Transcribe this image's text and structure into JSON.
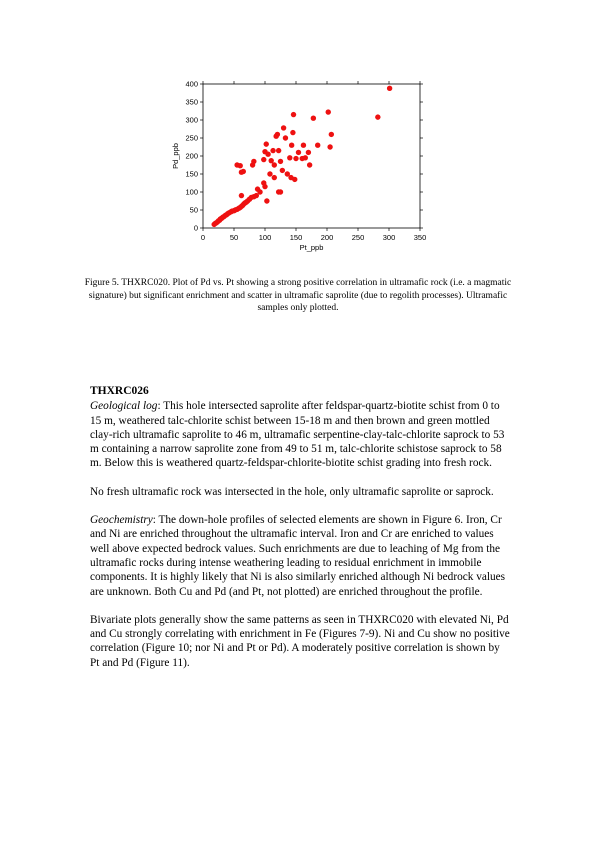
{
  "chart_data": {
    "type": "scatter",
    "xlabel": "Pt_ppb",
    "ylabel": "Pd_ppb",
    "xlim": [
      0,
      350
    ],
    "ylim": [
      0,
      400
    ],
    "xticks": [
      0,
      50,
      100,
      150,
      200,
      250,
      300,
      350
    ],
    "yticks": [
      0,
      50,
      100,
      150,
      200,
      250,
      300,
      350,
      400
    ],
    "marker_color": "#ee1111",
    "points": [
      [
        18,
        10
      ],
      [
        20,
        13
      ],
      [
        22,
        15
      ],
      [
        24,
        18
      ],
      [
        25,
        20
      ],
      [
        27,
        22
      ],
      [
        28,
        25
      ],
      [
        30,
        27
      ],
      [
        32,
        30
      ],
      [
        34,
        32
      ],
      [
        36,
        35
      ],
      [
        38,
        37
      ],
      [
        40,
        40
      ],
      [
        42,
        42
      ],
      [
        45,
        45
      ],
      [
        47,
        47
      ],
      [
        50,
        48
      ],
      [
        52,
        50
      ],
      [
        55,
        52
      ],
      [
        58,
        55
      ],
      [
        60,
        57
      ],
      [
        62,
        60
      ],
      [
        64,
        63
      ],
      [
        66,
        67
      ],
      [
        68,
        70
      ],
      [
        70,
        72
      ],
      [
        72,
        75
      ],
      [
        75,
        80
      ],
      [
        78,
        85
      ],
      [
        82,
        87
      ],
      [
        86,
        90
      ],
      [
        62,
        90
      ],
      [
        55,
        175
      ],
      [
        60,
        173
      ],
      [
        62,
        155
      ],
      [
        65,
        157
      ],
      [
        80,
        175
      ],
      [
        82,
        185
      ],
      [
        98,
        125
      ],
      [
        100,
        115
      ],
      [
        98,
        190
      ],
      [
        100,
        212
      ],
      [
        102,
        233
      ],
      [
        105,
        205
      ],
      [
        108,
        150
      ],
      [
        110,
        187
      ],
      [
        113,
        215
      ],
      [
        115,
        175
      ],
      [
        115,
        140
      ],
      [
        118,
        255
      ],
      [
        120,
        260
      ],
      [
        122,
        215
      ],
      [
        122,
        100
      ],
      [
        125,
        100
      ],
      [
        125,
        185
      ],
      [
        128,
        160
      ],
      [
        130,
        278
      ],
      [
        133,
        250
      ],
      [
        136,
        150
      ],
      [
        140,
        195
      ],
      [
        142,
        140
      ],
      [
        143,
        230
      ],
      [
        145,
        265
      ],
      [
        146,
        315
      ],
      [
        148,
        135
      ],
      [
        150,
        193
      ],
      [
        154,
        210
      ],
      [
        160,
        193
      ],
      [
        162,
        230
      ],
      [
        165,
        195
      ],
      [
        170,
        210
      ],
      [
        172,
        175
      ],
      [
        178,
        305
      ],
      [
        185,
        230
      ],
      [
        202,
        322
      ],
      [
        205,
        225
      ],
      [
        207,
        260
      ],
      [
        282,
        308
      ],
      [
        301,
        388
      ],
      [
        103,
        75
      ],
      [
        88,
        108
      ],
      [
        92,
        100
      ]
    ]
  },
  "caption": "Figure 5. THXRC020. Plot of Pd vs. Pt showing a strong positive correlation in ultramafic rock (i.e. a magmatic signature) but significant enrichment and scatter in ultramafic saprolite (due to regolith processes). Ultramafic samples only plotted.",
  "section": {
    "heading": "THXRC026",
    "geo_label": "Geological log",
    "geo_text": ":  This hole intersected saprolite after feldspar-quartz-biotite schist from 0 to 15 m, weathered talc-chlorite schist between 15-18 m and then brown and green mottled clay-rich ultramafic saprolite to 46 m, ultramafic serpentine-clay-talc-chlorite saprock to 53 m containing a narrow saprolite zone from 49 to 51 m, talc-chlorite schistose saprock to 58 m.  Below this is weathered quartz-feldspar-chlorite-biotite schist grading into fresh rock.",
    "para2": "No fresh ultramafic rock was intersected in the hole, only ultramafic saprolite or saprock.",
    "geochem_label": "Geochemistry",
    "geochem_text": ":  The down-hole profiles of selected elements are shown in Figure 6. Iron, Cr and Ni are enriched throughout the ultramafic interval.  Iron and Cr are enriched to values well above expected bedrock values.  Such enrichments are due to leaching of Mg from the ultramafic rocks during intense weathering leading to residual enrichment in immobile components.  It is highly likely that Ni is also similarly enriched although Ni bedrock values are unknown.  Both Cu and Pd (and Pt, not plotted) are enriched throughout the profile.",
    "para4": "Bivariate plots generally show the same patterns as seen in THXRC020 with elevated Ni, Pd and Cu strongly correlating with enrichment in Fe (Figures 7-9).  Ni and Cu show no positive correlation (Figure 10; nor Ni and Pt or Pd).  A moderately positive correlation is shown by Pt and Pd (Figure 11)."
  }
}
